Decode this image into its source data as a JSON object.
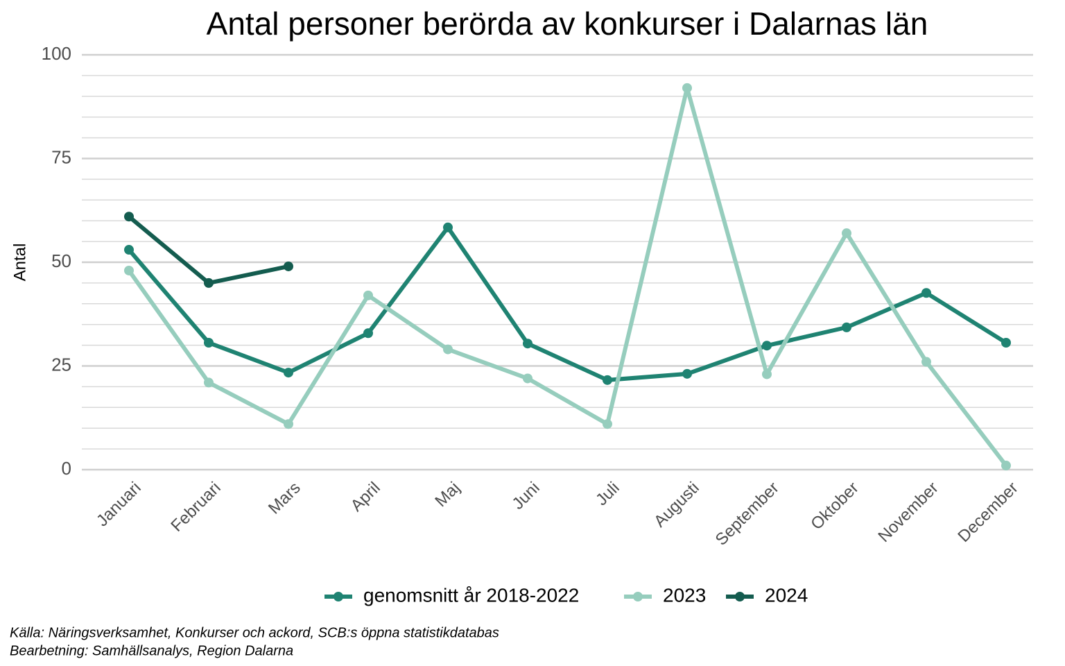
{
  "chart_data": {
    "type": "line",
    "title": "Antal personer berörda av konkurser i Dalarnas län",
    "ylabel": "Antal",
    "categories": [
      "Januari",
      "Februari",
      "Mars",
      "April",
      "Maj",
      "Juni",
      "Juli",
      "Augusti",
      "September",
      "Oktober",
      "November",
      "December"
    ],
    "series": [
      {
        "name": "genomsnitt år 2018-2022",
        "color": "#1f8372",
        "values": [
          53.0,
          30.6,
          23.4,
          32.9,
          58.4,
          30.4,
          21.6,
          23.1,
          29.9,
          34.3,
          42.6,
          30.6
        ]
      },
      {
        "name": "2023",
        "color": "#96cdbd",
        "values": [
          48,
          21,
          11,
          42,
          29,
          22,
          11,
          92,
          23,
          57,
          26,
          1
        ]
      },
      {
        "name": "2024",
        "color": "#145c4f",
        "values": [
          61,
          45,
          49,
          null,
          null,
          null,
          null,
          null,
          null,
          null,
          null,
          null
        ]
      }
    ],
    "ylim": [
      0,
      100
    ],
    "yticks": [
      0,
      25,
      50,
      75,
      100
    ],
    "grid": true,
    "minor_grid": true,
    "legend": "bottom",
    "caption": [
      "Källa: Näringsverksamhet, Konkurser och ackord, SCB:s öppna statistikdatabas",
      "Bearbetning: Samhällsanalys, Region Dalarna"
    ]
  }
}
